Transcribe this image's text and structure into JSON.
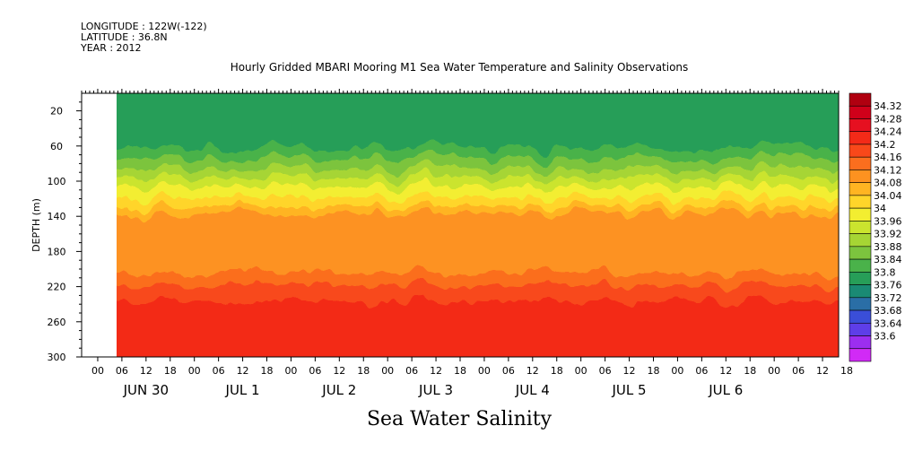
{
  "header": {
    "longitude": "LONGITUDE : 122W(-122)",
    "latitude": "LATITUDE : 36.8N",
    "year": "YEAR : 2012",
    "title": "Hourly Gridded MBARI Mooring M1 Sea Water Temperature and Salinity Observations"
  },
  "bottom_title": "Sea Water Salinity",
  "chart_data": {
    "type": "heatmap",
    "title": "Hourly Gridded MBARI Mooring M1 Sea Water Temperature and Salinity Observations",
    "xlabel": "",
    "ylabel": "DEPTH (m)",
    "variable_label": "Sea Water Salinity",
    "x_range_hours": [
      -10,
      178
    ],
    "data_start_hour": -1.3,
    "y_range": [
      0,
      300
    ],
    "y_reversed": true,
    "y_ticks": [
      20,
      60,
      100,
      140,
      180,
      220,
      260,
      300
    ],
    "x_hour_ticks": [
      "00",
      "06",
      "12",
      "18",
      "00",
      "06",
      "12",
      "18",
      "00",
      "06",
      "12",
      "18",
      "00",
      "06",
      "12",
      "18",
      "00",
      "06",
      "12",
      "18",
      "00",
      "06",
      "12",
      "18",
      "00",
      "06",
      "12",
      "18",
      "00",
      "06",
      "12",
      "18"
    ],
    "x_hour_tick_hours": [
      -6,
      0,
      6,
      12,
      18,
      24,
      30,
      36,
      42,
      48,
      54,
      60,
      66,
      72,
      78,
      84,
      90,
      96,
      102,
      108,
      114,
      120,
      126,
      132,
      138,
      144,
      150,
      156,
      162,
      168,
      174,
      180
    ],
    "day_labels": [
      {
        "label": "JUN 30",
        "hour": 6
      },
      {
        "label": "JUL  1",
        "hour": 30
      },
      {
        "label": "JUL  2",
        "hour": 54
      },
      {
        "label": "JUL  3",
        "hour": 78
      },
      {
        "label": "JUL  4",
        "hour": 102
      },
      {
        "label": "JUL  5",
        "hour": 126
      },
      {
        "label": "JUL  6",
        "hour": 150
      }
    ],
    "depth_profile": [
      {
        "depth": 0,
        "value": 33.82
      },
      {
        "depth": 20,
        "value": 33.8
      },
      {
        "depth": 40,
        "value": 33.81
      },
      {
        "depth": 60,
        "value": 33.84
      },
      {
        "depth": 80,
        "value": 33.9
      },
      {
        "depth": 100,
        "value": 33.98
      },
      {
        "depth": 120,
        "value": 34.05
      },
      {
        "depth": 140,
        "value": 34.14
      },
      {
        "depth": 160,
        "value": 34.16
      },
      {
        "depth": 180,
        "value": 34.13
      },
      {
        "depth": 200,
        "value": 34.15
      },
      {
        "depth": 220,
        "value": 34.21
      },
      {
        "depth": 240,
        "value": 34.25
      },
      {
        "depth": 260,
        "value": 34.28
      },
      {
        "depth": 280,
        "value": 34.26
      },
      {
        "depth": 300,
        "value": 34.24
      }
    ],
    "colorbar": {
      "levels": [
        "34.32",
        "34.28",
        "34.24",
        "34.2",
        "34.16",
        "34.12",
        "34.08",
        "34.04",
        "34",
        "33.96",
        "33.92",
        "33.88",
        "33.84",
        "33.8",
        "33.76",
        "33.72",
        "33.68",
        "33.64",
        "33.6"
      ],
      "colors": [
        "#b00010",
        "#d0001a",
        "#e61020",
        "#f32a18",
        "#f8481a",
        "#fb6e1e",
        "#fd9220",
        "#ffb422",
        "#ffd52a",
        "#f3ee30",
        "#cbe42e",
        "#a6d534",
        "#7cc43e",
        "#4ab24a",
        "#279e58",
        "#1a8a74",
        "#2a6ea6",
        "#3a4ed8",
        "#5e3ee8",
        "#9c2ef0",
        "#d12af6"
      ]
    }
  }
}
